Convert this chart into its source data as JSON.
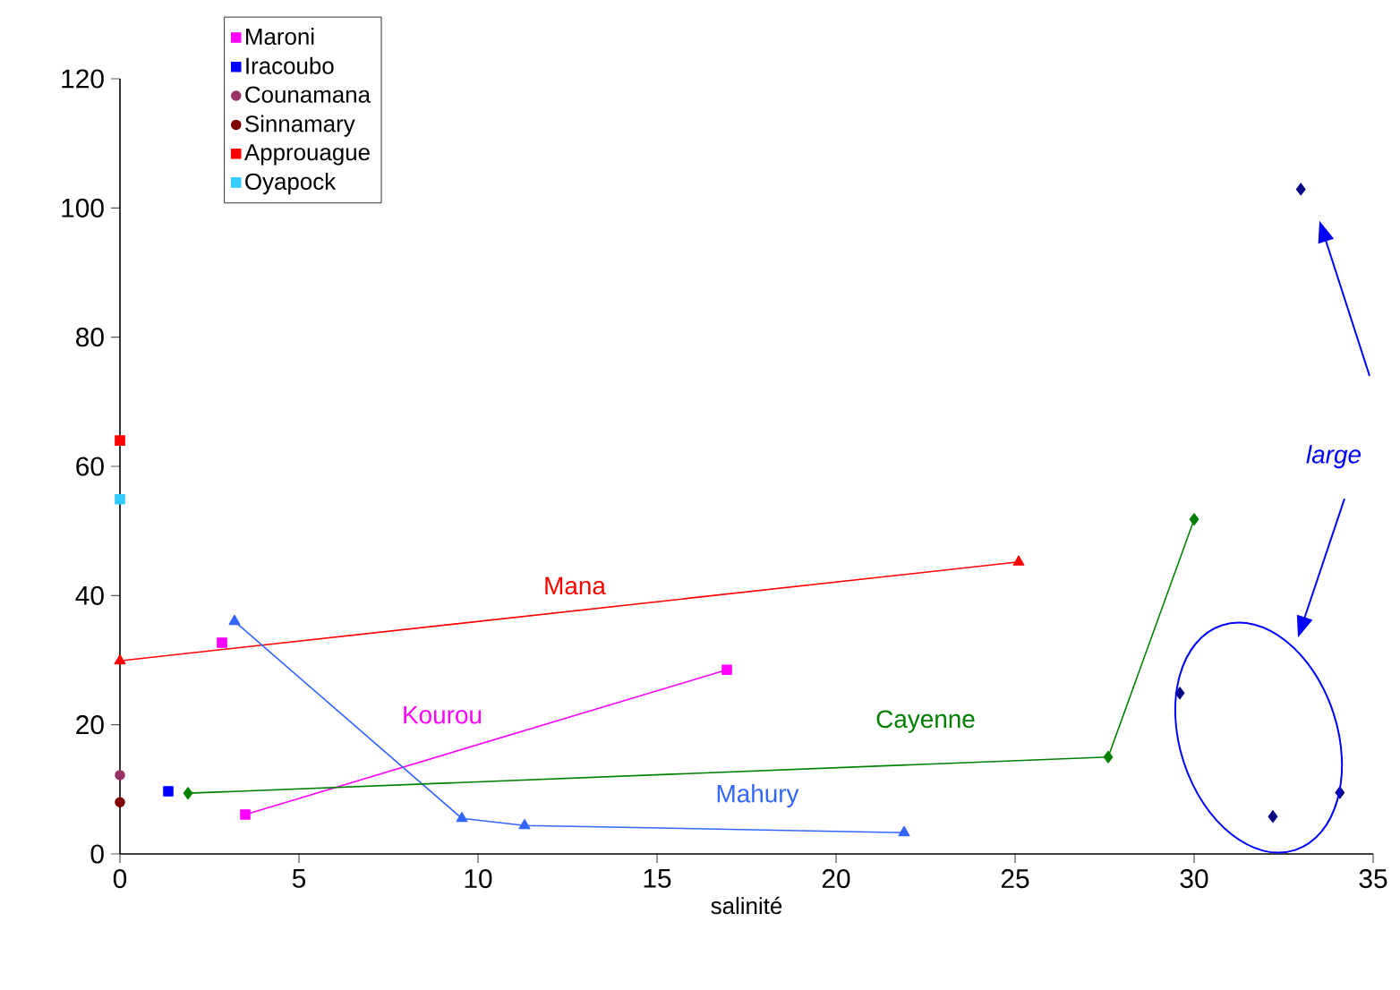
{
  "chart_data": {
    "type": "scatter",
    "xlabel": "salinité",
    "xlim": [
      0,
      35
    ],
    "ylim": [
      0,
      120
    ],
    "xticks": [
      0,
      5,
      10,
      15,
      20,
      25,
      30,
      35
    ],
    "yticks": [
      0,
      20,
      40,
      60,
      80,
      100,
      120
    ],
    "grid": false,
    "legend": "top left",
    "series": [
      {
        "name": "Maroni",
        "color": "#ff00ff",
        "marker": "square",
        "x": [
          2.85
        ],
        "values": [
          32.7
        ]
      },
      {
        "name": "Iracoubo",
        "color": "#0000ff",
        "marker": "square",
        "x": [
          1.35
        ],
        "values": [
          9.7
        ]
      },
      {
        "name": "Counamana",
        "color": "#993366",
        "marker": "circle",
        "x": [
          0
        ],
        "values": [
          12.2
        ]
      },
      {
        "name": "Sinnamary",
        "color": "#800000",
        "marker": "circle",
        "x": [
          0
        ],
        "values": [
          8.0
        ]
      },
      {
        "name": "Approuague",
        "color": "#ff0000",
        "marker": "square",
        "x": [
          0
        ],
        "values": [
          64.0
        ]
      },
      {
        "name": "Oyapock",
        "color": "#33ccff",
        "marker": "square",
        "x": [
          0
        ],
        "values": [
          54.9
        ]
      },
      {
        "name": "Mana",
        "type": "line",
        "color": "#ff0000",
        "marker": "triangle",
        "x": [
          0,
          25.1
        ],
        "values": [
          29.9,
          45.2
        ]
      },
      {
        "name": "Kourou",
        "type": "line",
        "color": "#ff00ff",
        "marker": "square",
        "x": [
          3.5,
          16.95
        ],
        "values": [
          6.1,
          28.5
        ]
      },
      {
        "name": "Mahury",
        "type": "line",
        "color": "#3366ff",
        "marker": "triangle",
        "x": [
          3.2,
          9.55,
          11.3,
          21.9
        ],
        "values": [
          36.0,
          5.5,
          4.4,
          3.3
        ]
      },
      {
        "name": "Cayenne",
        "type": "line",
        "color": "#008000",
        "marker": "diamond",
        "x": [
          1.9,
          27.6,
          30.0
        ],
        "values": [
          9.4,
          15.0,
          51.8
        ]
      },
      {
        "color": "#000080",
        "marker": "diamond",
        "x": [
          29.6,
          32.2,
          34.07,
          32.98
        ],
        "values": [
          24.9,
          5.8,
          9.5,
          102.9
        ]
      }
    ],
    "annotations": [
      "large"
    ]
  }
}
